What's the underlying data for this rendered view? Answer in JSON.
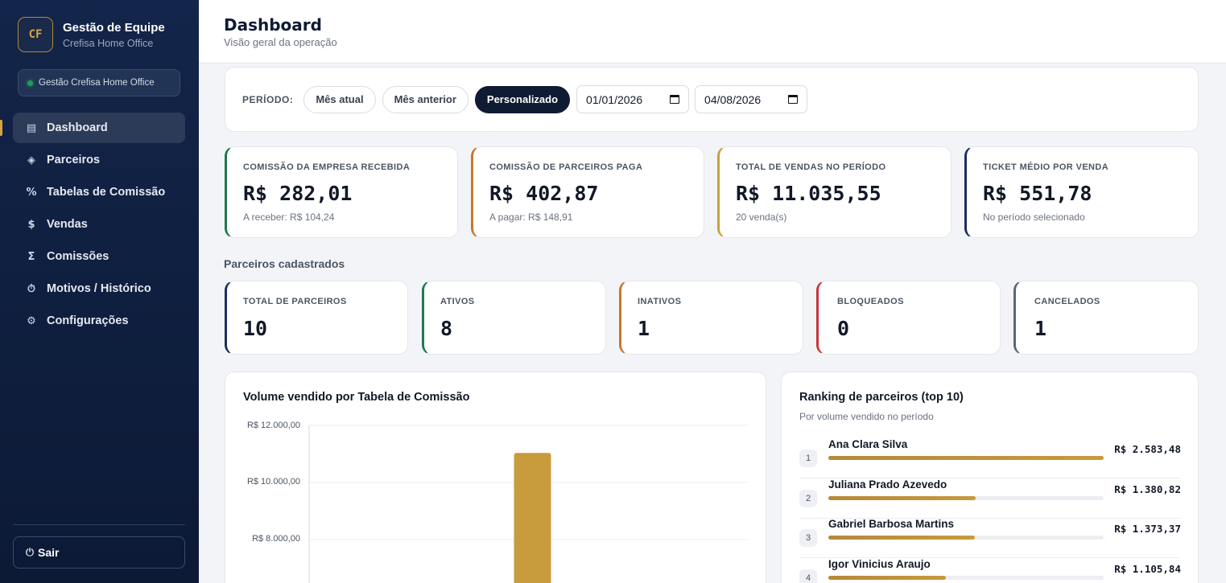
{
  "app": {
    "logo": "CF",
    "title": "Gestão de Equipe",
    "subtitle": "Crefisa Home Office",
    "org": "Gestão Crefisa Home Office"
  },
  "nav": [
    {
      "label": "Dashboard",
      "icon": "list-icon",
      "glyph": "▤",
      "active": true
    },
    {
      "label": "Parceiros",
      "icon": "diamond-icon",
      "glyph": "◈"
    },
    {
      "label": "Tabelas de Comissão",
      "icon": "percent-icon",
      "glyph": "%"
    },
    {
      "label": "Vendas",
      "icon": "dollar-icon",
      "glyph": "$"
    },
    {
      "label": "Comissões",
      "icon": "sigma-icon",
      "glyph": "Σ"
    },
    {
      "label": "Motivos / Histórico",
      "icon": "stopwatch-icon",
      "glyph": "⏱"
    },
    {
      "label": "Configurações",
      "icon": "gear-icon",
      "glyph": "⚙"
    }
  ],
  "logout": {
    "label": "Sair",
    "glyph": "⏻"
  },
  "header": {
    "title": "Dashboard",
    "subtitle": "Visão geral da operação"
  },
  "period": {
    "label": "PERÍODO:",
    "options": [
      "Mês atual",
      "Mês anterior",
      "Personalizado"
    ],
    "selected": "Personalizado",
    "start": "01/01/2026",
    "end": "04/08/2026"
  },
  "kpis": [
    {
      "label": "COMISSÃO DA EMPRESA RECEBIDA",
      "value": "R$ 282,01",
      "sub": "A receber: R$ 104,24",
      "color": "#1e7a4c"
    },
    {
      "label": "COMISSÃO DE PARCEIROS PAGA",
      "value": "R$ 402,87",
      "sub": "A pagar: R$ 148,91",
      "color": "#c8772a"
    },
    {
      "label": "TOTAL DE VENDAS NO PERÍODO",
      "value": "R$ 11.035,55",
      "sub": "20 venda(s)",
      "color": "#c8a03e"
    },
    {
      "label": "TICKET MÉDIO POR VENDA",
      "value": "R$ 551,78",
      "sub": "No período selecionado",
      "color": "#1b2f5e"
    }
  ],
  "partners_section": "Parceiros cadastrados",
  "partner_stats": [
    {
      "label": "TOTAL DE PARCEIROS",
      "value": "10",
      "color": "#1b2f5e"
    },
    {
      "label": "ATIVOS",
      "value": "8",
      "color": "#1e7a4c"
    },
    {
      "label": "INATIVOS",
      "value": "1",
      "color": "#c8772a"
    },
    {
      "label": "BLOQUEADOS",
      "value": "0",
      "color": "#c7343a"
    },
    {
      "label": "CANCELADOS",
      "value": "1",
      "color": "#5b6579"
    }
  ],
  "chart_data": {
    "type": "bar",
    "title": "Volume vendido por Tabela de Comissão",
    "yticks": [
      "R$ 12.000,00",
      "R$ 10.000,00",
      "R$ 8.000,00"
    ],
    "ylim_visible": [
      8000,
      12000
    ],
    "values": [
      11035.55
    ],
    "color": "#c89b3c",
    "grid": true
  },
  "ranking": {
    "title": "Ranking de parceiros (top 10)",
    "subtitle": "Por volume vendido no período",
    "items": [
      {
        "pos": "1",
        "name": "Ana Clara Silva",
        "value": "R$ 2.583,48",
        "share": 1.0
      },
      {
        "pos": "2",
        "name": "Juliana Prado Azevedo",
        "value": "R$ 1.380,82",
        "share": 0.534
      },
      {
        "pos": "3",
        "name": "Gabriel Barbosa Martins",
        "value": "R$ 1.373,37",
        "share": 0.532
      },
      {
        "pos": "4",
        "name": "Igor Vinicius Araujo",
        "value": "R$ 1.105,84",
        "share": 0.428
      }
    ]
  }
}
